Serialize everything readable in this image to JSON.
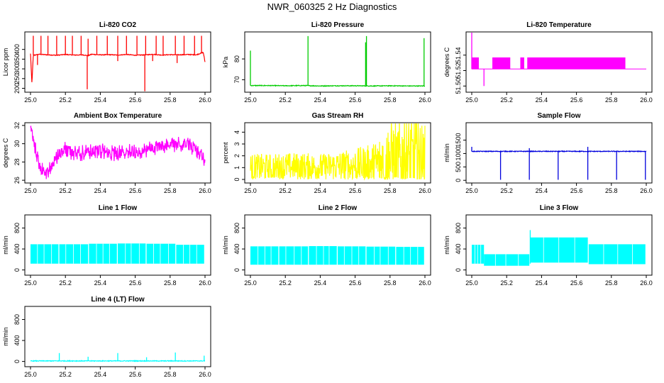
{
  "page": {
    "title": "NWR_060325  2 Hz Diagnostics"
  },
  "chart_data": [
    {
      "type": "line",
      "title": "Li-820 CO2",
      "ylabel": "Licor ppm",
      "xlim": [
        25.0,
        26.0
      ],
      "ylim": [
        180,
        490
      ],
      "x_ticks": [
        "25.0",
        "25.2",
        "25.4",
        "25.6",
        "25.8",
        "26.0"
      ],
      "y_ticks": [
        "200",
        "250",
        "300",
        "350",
        "400"
      ],
      "y_tick_values": [
        200,
        250,
        300,
        350,
        400
      ],
      "series": [
        {
          "color": "#ff0000",
          "x": [
            25.0,
            25.008,
            25.016,
            25.05,
            25.1,
            25.15,
            25.2,
            25.25,
            25.3,
            25.33,
            25.35,
            25.4,
            25.45,
            25.5,
            25.55,
            25.6,
            25.66,
            25.7,
            25.75,
            25.8,
            25.85,
            25.9,
            25.95,
            25.99,
            26.0
          ],
          "y": [
            378,
            225,
            370,
            375,
            372,
            370,
            374,
            371,
            372,
            368,
            375,
            372,
            373,
            371,
            374,
            370,
            372,
            375,
            371,
            373,
            372,
            374,
            372,
            385,
            335
          ],
          "spikes": [
            [
              25.016,
              470
            ],
            [
              25.06,
              470
            ],
            [
              25.1,
              470
            ],
            [
              25.15,
              470
            ],
            [
              25.2,
              470
            ],
            [
              25.24,
              470
            ],
            [
              25.29,
              470
            ],
            [
              25.33,
              455
            ],
            [
              25.38,
              470
            ],
            [
              25.44,
              470
            ],
            [
              25.5,
              470
            ],
            [
              25.55,
              470
            ],
            [
              25.61,
              470
            ],
            [
              25.66,
              470
            ],
            [
              25.72,
              470
            ],
            [
              25.76,
              470
            ],
            [
              25.83,
              470
            ],
            [
              25.88,
              470
            ],
            [
              25.94,
              470
            ],
            [
              25.98,
              470
            ],
            [
              25.325,
              195
            ],
            [
              25.655,
              185
            ],
            [
              25.04,
              320
            ],
            [
              25.5,
              340
            ],
            [
              25.84,
              330
            ],
            [
              25.7,
              340
            ]
          ]
        }
      ]
    },
    {
      "type": "line",
      "title": "Li-820 Pressure",
      "ylabel": "kPa",
      "xlim": [
        25.0,
        26.0
      ],
      "ylim": [
        64,
        93
      ],
      "x_ticks": [
        "25.0",
        "25.2",
        "25.4",
        "25.6",
        "25.8",
        "26.0"
      ],
      "y_ticks": [
        "70",
        "80"
      ],
      "y_tick_values": [
        70,
        80
      ],
      "series": [
        {
          "color": "#00cc00",
          "x": [
            25.0,
            25.1,
            25.2,
            25.3,
            25.4,
            25.5,
            25.6,
            25.7,
            25.8,
            25.9,
            26.0
          ],
          "y": [
            67.2,
            67.2,
            67.1,
            67.2,
            67.0,
            67.1,
            67.1,
            67.0,
            67.1,
            67.0,
            67.0
          ],
          "spikes": [
            [
              25.0,
              84
            ],
            [
              25.33,
              91
            ],
            [
              25.665,
              91
            ],
            [
              25.66,
              88
            ],
            [
              25.995,
              90
            ]
          ]
        }
      ]
    },
    {
      "type": "line",
      "title": "Li-820 Temperature",
      "ylabel": "degrees C",
      "xlim": [
        25.0,
        26.0
      ],
      "ylim": [
        51.492,
        51.57
      ],
      "x_ticks": [
        "25.0",
        "25.2",
        "25.4",
        "25.6",
        "25.8",
        "26.0"
      ],
      "y_ticks": [
        "51.50",
        "51.52",
        "51.54"
      ],
      "y_tick_values": [
        51.5,
        51.52,
        51.54
      ],
      "series": [
        {
          "color": "#ff00ff",
          "baseline": 51.522,
          "high": 51.537,
          "bands": [
            [
              25.0,
              25.04
            ],
            [
              25.12,
              25.22
            ],
            [
              25.28,
              25.3
            ],
            [
              25.32,
              25.88
            ]
          ],
          "spikes": [
            [
              25.0,
              51.57
            ],
            [
              25.07,
              51.5
            ]
          ]
        }
      ]
    },
    {
      "type": "line",
      "title": "Ambient Box Temperature",
      "ylabel": "degrees C",
      "xlim": [
        25.0,
        26.0
      ],
      "ylim": [
        25.7,
        32.3
      ],
      "x_ticks": [
        "25.0",
        "25.2",
        "25.4",
        "25.6",
        "25.8",
        "26.0"
      ],
      "y_ticks": [
        "26",
        "28",
        "30",
        "32"
      ],
      "y_tick_values": [
        26,
        28,
        30,
        32
      ],
      "series": [
        {
          "color": "#ff00ff",
          "x": [
            25.0,
            25.03,
            25.06,
            25.09,
            25.12,
            25.16,
            25.2,
            25.25,
            25.3,
            25.35,
            25.4,
            25.45,
            25.5,
            25.55,
            25.6,
            25.65,
            25.7,
            25.75,
            25.8,
            25.85,
            25.9,
            25.95,
            26.0
          ],
          "y": [
            31.5,
            29.2,
            27.2,
            26.8,
            27.6,
            28.8,
            29.4,
            29.0,
            29.0,
            29.2,
            29.3,
            29.0,
            28.9,
            29.1,
            29.2,
            29.3,
            29.6,
            29.7,
            29.9,
            30.0,
            30.1,
            29.3,
            28.3
          ],
          "noise": 0.9
        }
      ]
    },
    {
      "type": "line",
      "title": "Gas Stream RH",
      "ylabel": "percent",
      "xlim": [
        25.0,
        26.0
      ],
      "ylim": [
        -0.3,
        4.8
      ],
      "x_ticks": [
        "25.0",
        "25.2",
        "25.4",
        "25.6",
        "25.8",
        "26.0"
      ],
      "y_ticks": [
        "0",
        "1",
        "2",
        "3",
        "4"
      ],
      "y_tick_values": [
        0,
        1,
        2,
        3,
        4
      ],
      "series": [
        {
          "color": "#ffff00",
          "x": [
            25.0,
            25.1,
            25.2,
            25.3,
            25.4,
            25.5,
            25.6,
            25.7,
            25.75,
            25.8,
            25.85,
            25.9,
            25.95,
            26.0
          ],
          "y": [
            1.0,
            1.0,
            1.1,
            1.1,
            1.0,
            1.1,
            1.2,
            1.2,
            1.4,
            1.6,
            1.5,
            1.5,
            1.5,
            1.4
          ],
          "noise_frac": [
            0.9,
            0.9,
            0.9,
            0.9,
            0.9,
            1.0,
            1.1,
            1.4,
            2.0,
            2.6,
            2.8,
            2.9,
            2.9,
            2.5
          ]
        }
      ]
    },
    {
      "type": "line",
      "title": "Sample Flow",
      "ylabel": "ml/min",
      "xlim": [
        25.0,
        26.0
      ],
      "ylim": [
        -100,
        2150
      ],
      "x_ticks": [
        "25.0",
        "25.2",
        "25.4",
        "25.6",
        "25.8",
        "26.0"
      ],
      "y_ticks": [
        "0",
        "500",
        "1000",
        "1500"
      ],
      "y_tick_values": [
        0,
        500,
        1000,
        1500
      ],
      "series": [
        {
          "color": "#0000dd",
          "x": [
            25.0,
            26.0
          ],
          "y": [
            1080,
            1080
          ],
          "spikes": [
            [
              25.0,
              1250
            ],
            [
              25.165,
              20
            ],
            [
              25.33,
              1200
            ],
            [
              25.33,
              20
            ],
            [
              25.495,
              20
            ],
            [
              25.665,
              1250
            ],
            [
              25.665,
              20
            ],
            [
              25.83,
              20
            ],
            [
              25.995,
              20
            ]
          ]
        }
      ]
    },
    {
      "type": "area",
      "title": "Line 1 Flow",
      "ylabel": "ml/min",
      "xlim": [
        25.0,
        26.0
      ],
      "ylim": [
        -100,
        1050
      ],
      "x_ticks": [
        "25.0",
        "25.2",
        "25.4",
        "25.6",
        "25.8",
        "26.0"
      ],
      "y_ticks": [
        "0",
        "400",
        "800"
      ],
      "y_tick_values": [
        0,
        400,
        800
      ],
      "series": [
        {
          "color": "#00ffff",
          "segments": [
            [
              25.0,
              25.16,
              120,
              490
            ],
            [
              25.165,
              25.33,
              120,
              490
            ],
            [
              25.335,
              25.495,
              120,
              500
            ],
            [
              25.5,
              25.66,
              120,
              505
            ],
            [
              25.665,
              25.83,
              120,
              500
            ],
            [
              25.835,
              25.995,
              120,
              480
            ]
          ]
        }
      ]
    },
    {
      "type": "area",
      "title": "Line 2 Flow",
      "ylabel": "ml/min",
      "xlim": [
        25.0,
        26.0
      ],
      "ylim": [
        -100,
        1050
      ],
      "x_ticks": [
        "25.0",
        "25.2",
        "25.4",
        "25.6",
        "25.8",
        "26.0"
      ],
      "y_ticks": [
        "0",
        "400",
        "800"
      ],
      "y_tick_values": [
        0,
        400,
        800
      ],
      "series": [
        {
          "color": "#00ffff",
          "segments": [
            [
              25.0,
              25.16,
              100,
              450
            ],
            [
              25.165,
              25.33,
              100,
              450
            ],
            [
              25.335,
              25.495,
              100,
              455
            ],
            [
              25.5,
              25.66,
              100,
              450
            ],
            [
              25.665,
              25.83,
              100,
              445
            ],
            [
              25.835,
              25.995,
              100,
              440
            ]
          ]
        }
      ]
    },
    {
      "type": "area",
      "title": "Line 3 Flow",
      "ylabel": "ml/min",
      "xlim": [
        25.0,
        26.0
      ],
      "ylim": [
        -100,
        1050
      ],
      "x_ticks": [
        "25.0",
        "25.2",
        "25.4",
        "25.6",
        "25.8",
        "26.0"
      ],
      "y_ticks": [
        "0",
        "400",
        "800"
      ],
      "y_tick_values": [
        0,
        400,
        800
      ],
      "series": [
        {
          "color": "#00ffff",
          "segments": [
            [
              25.0,
              25.07,
              120,
              480
            ],
            [
              25.07,
              25.33,
              80,
              300
            ],
            [
              25.335,
              25.665,
              140,
              620
            ],
            [
              25.67,
              25.995,
              110,
              490
            ]
          ],
          "spikes": [
            [
              25.335,
              760
            ]
          ]
        }
      ]
    },
    {
      "type": "line",
      "title": "Line 4 (LT) Flow",
      "ylabel": "ml/min",
      "xlim": [
        25.0,
        26.0
      ],
      "ylim": [
        -100,
        1050
      ],
      "x_ticks": [
        "25.0",
        "25.2",
        "25.4",
        "25.6",
        "25.8",
        "26.0"
      ],
      "y_ticks": [
        "0",
        "400",
        "800"
      ],
      "y_tick_values": [
        0,
        400,
        800
      ],
      "series": [
        {
          "color": "#00ffff",
          "x": [
            25.0,
            26.0
          ],
          "y": [
            10,
            10
          ],
          "spikes": [
            [
              25.165,
              160
            ],
            [
              25.33,
              90
            ],
            [
              25.5,
              160
            ],
            [
              25.665,
              80
            ],
            [
              25.83,
              170
            ],
            [
              25.995,
              110
            ]
          ]
        }
      ]
    }
  ]
}
